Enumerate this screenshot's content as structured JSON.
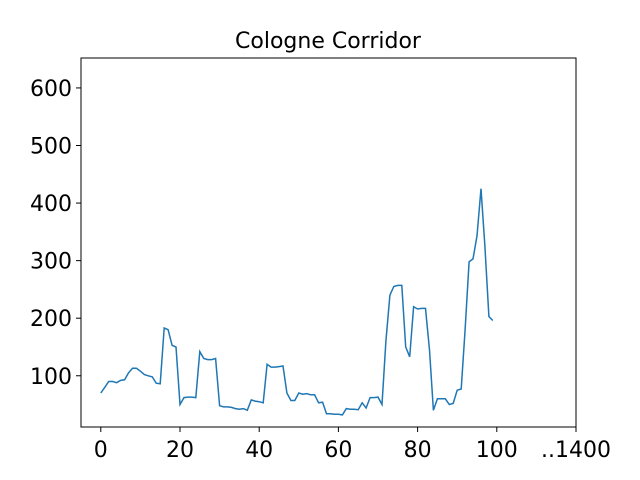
{
  "chart_data": {
    "type": "line",
    "title": "Cologne Corridor",
    "x": [
      0,
      1,
      2,
      3,
      4,
      5,
      6,
      7,
      8,
      9,
      10,
      11,
      12,
      13,
      14,
      15,
      16,
      17,
      18,
      19,
      20,
      21,
      22,
      23,
      24,
      25,
      26,
      27,
      28,
      29,
      30,
      31,
      32,
      33,
      34,
      35,
      36,
      37,
      38,
      39,
      40,
      41,
      42,
      43,
      44,
      45,
      46,
      47,
      48,
      49,
      50,
      51,
      52,
      53,
      54,
      55,
      56,
      57,
      58,
      59,
      60,
      61,
      62,
      63,
      64,
      65,
      66,
      67,
      68,
      69,
      70,
      71,
      72,
      73,
      74,
      75,
      76,
      77,
      78,
      79,
      80,
      81,
      82,
      83,
      84,
      85,
      86,
      87,
      88,
      89,
      90,
      91,
      92,
      93,
      94,
      95,
      96,
      97,
      98,
      99
    ],
    "series": [
      {
        "color": "#1f77b4",
        "values": [
          70,
          80,
          90,
          90,
          88,
          92,
          93,
          105,
          113,
          113,
          108,
          102,
          100,
          98,
          87,
          86,
          183,
          180,
          153,
          150,
          50,
          62,
          63,
          63,
          62,
          142,
          130,
          128,
          128,
          130,
          48,
          46,
          46,
          45,
          43,
          42,
          43,
          40,
          58,
          56,
          55,
          53,
          120,
          115,
          115,
          116,
          117,
          70,
          57,
          57,
          70,
          68,
          69,
          67,
          67,
          53,
          54,
          34,
          34,
          33,
          33,
          32,
          43,
          42,
          42,
          41,
          53,
          44,
          62,
          62,
          63,
          50,
          160,
          240,
          255,
          257,
          257,
          150,
          133,
          220,
          216,
          217,
          217,
          145,
          40,
          60,
          60,
          60,
          50,
          52,
          75,
          77,
          180,
          298,
          303,
          343,
          425,
          325,
          203,
          196
        ]
      }
    ],
    "xlim": [
      -5,
      120
    ],
    "ylim": [
      11,
      652
    ],
    "xticks": [
      0,
      20,
      40,
      60,
      80,
      100,
      {
        "value": 120,
        "label": "..1400"
      }
    ],
    "yticks": [
      100,
      200,
      300,
      400,
      500,
      600
    ]
  }
}
